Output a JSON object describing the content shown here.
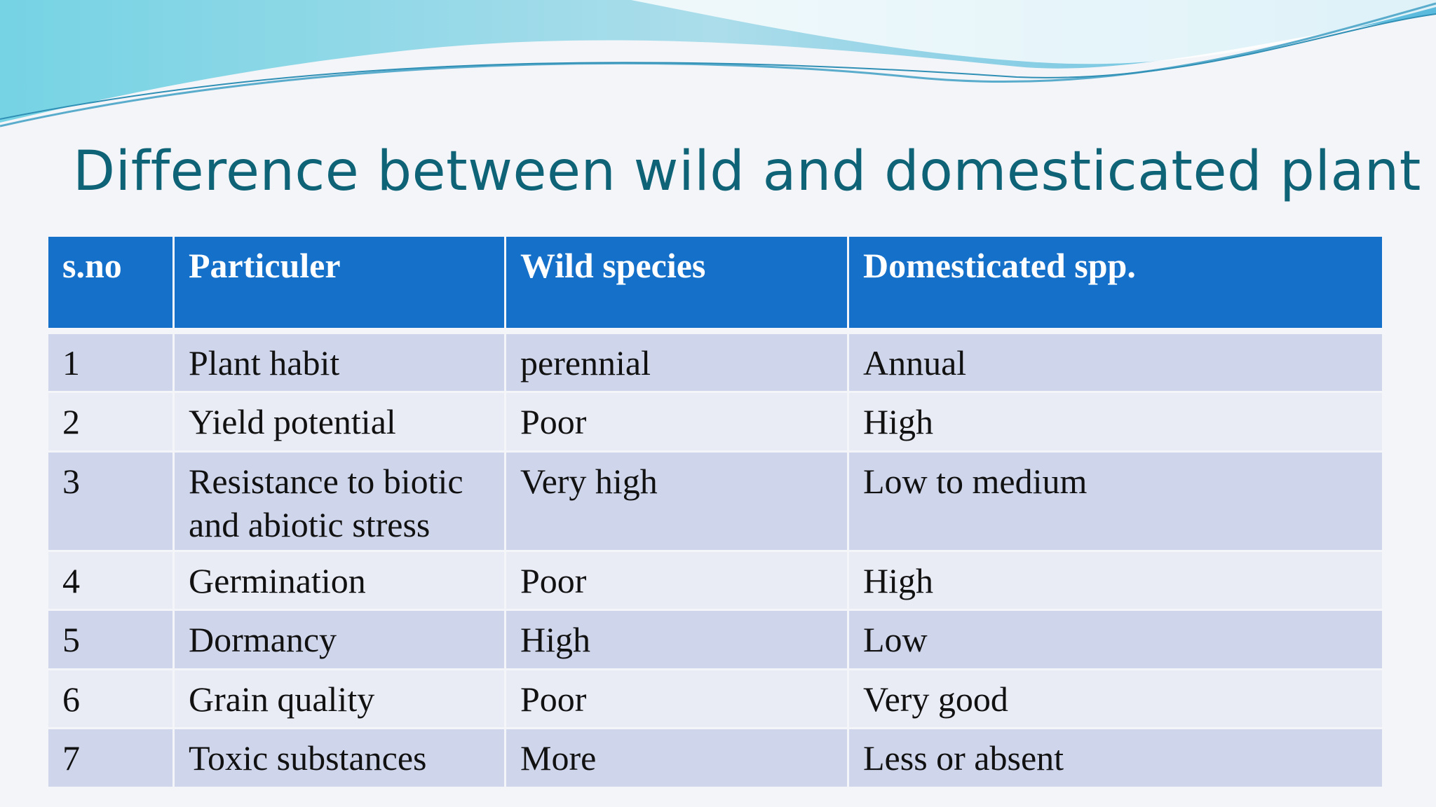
{
  "title": "Difference between wild and domesticated plant",
  "table": {
    "header": [
      "s.no",
      "Particuler",
      "Wild species",
      "Domesticated spp."
    ],
    "rows": [
      [
        "1",
        "Plant habit",
        "perennial",
        "Annual"
      ],
      [
        "2",
        "Yield potential",
        "Poor",
        "High"
      ],
      [
        "3",
        "Resistance to biotic and abiotic stress",
        "Very high",
        "Low to medium"
      ],
      [
        "4",
        "Germination",
        "Poor",
        "High"
      ],
      [
        "5",
        "Dormancy",
        "High",
        "Low"
      ],
      [
        "6",
        "Grain quality",
        "Poor",
        "Very good"
      ],
      [
        "7",
        "Toxic substances",
        "More",
        "Less  or absent"
      ]
    ]
  }
}
